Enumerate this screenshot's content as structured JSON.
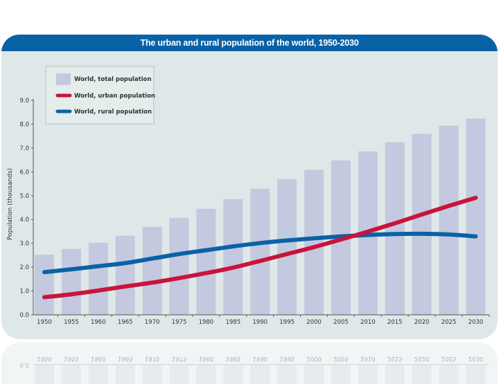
{
  "chart_data": {
    "type": "bar",
    "title": "The urban and rural population of the world, 1950-2030",
    "xlabel": "",
    "ylabel": "Population (thousands)",
    "ylim": [
      0,
      9
    ],
    "yticks": [
      "0.0",
      "1.0",
      "2.0",
      "3.0",
      "4.0",
      "5.0",
      "6.0",
      "7.0",
      "8.0",
      "9.0"
    ],
    "categories": [
      "1950",
      "1955",
      "1960",
      "1965",
      "1970",
      "1975",
      "1980",
      "1985",
      "1990",
      "1995",
      "2000",
      "2005",
      "2010",
      "2015",
      "2020",
      "2025",
      "2030"
    ],
    "grid": false,
    "legend_position": "top-left",
    "series": [
      {
        "name": "World, total population",
        "kind": "bar",
        "color": "#c3c9de",
        "values": [
          2.52,
          2.76,
          3.02,
          3.32,
          3.69,
          4.07,
          4.45,
          4.85,
          5.29,
          5.7,
          6.08,
          6.48,
          6.86,
          7.24,
          7.59,
          7.94,
          8.23
        ]
      },
      {
        "name": "World, urban population",
        "kind": "line",
        "color": "#c8143c",
        "values": [
          0.74,
          0.86,
          1.02,
          1.19,
          1.35,
          1.54,
          1.75,
          1.98,
          2.26,
          2.55,
          2.84,
          3.16,
          3.49,
          3.84,
          4.21,
          4.57,
          4.91
        ]
      },
      {
        "name": "World, rural population",
        "kind": "line",
        "color": "#0a62a6",
        "values": [
          1.79,
          1.91,
          2.04,
          2.17,
          2.36,
          2.55,
          2.71,
          2.87,
          3.01,
          3.12,
          3.21,
          3.29,
          3.35,
          3.39,
          3.4,
          3.37,
          3.29
        ]
      }
    ]
  }
}
